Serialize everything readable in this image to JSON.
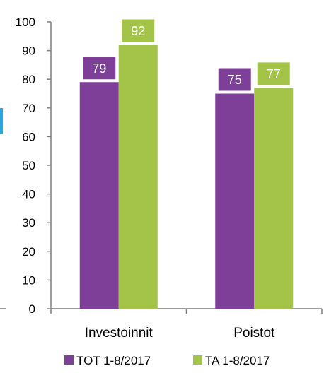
{
  "chart_data": {
    "type": "bar",
    "categories": [
      "Investoinnit",
      "Poistot"
    ],
    "series": [
      {
        "name": "TOT 1-8/2017",
        "values": [
          79,
          75
        ],
        "color": "#7e3f98"
      },
      {
        "name": "TA 1-8/2017",
        "values": [
          92,
          77
        ],
        "color": "#a4c449"
      }
    ],
    "ylim": [
      0,
      100
    ],
    "yticks": [
      0,
      10,
      20,
      30,
      40,
      50,
      60,
      70,
      80,
      90,
      100
    ],
    "grid": false,
    "legend_position": "bottom",
    "accent_color": "#29a8e0",
    "axis_color": "#7f7f7f"
  }
}
